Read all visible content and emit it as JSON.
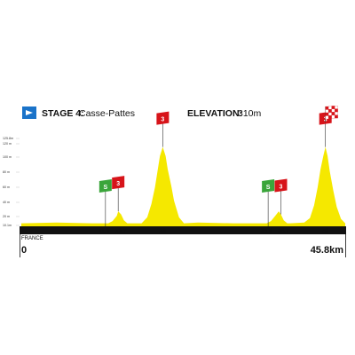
{
  "header": {
    "stage_label": "STAGE 4:",
    "stage_name": "Casse-Pattes",
    "elevation_label": "ELEVATION:",
    "elevation_value": "310m"
  },
  "start": {
    "place": "FRANCE",
    "distance": "0"
  },
  "finish": {
    "distance": "45.8km"
  },
  "colors": {
    "terrain": "#f5e800",
    "road": "#111111",
    "climb_flag": "#d7141a",
    "sprint_flag": "#3aa53a",
    "start_badge": "#1a73c9"
  },
  "icons": {
    "start": "start-arrow-icon",
    "finish": "finish-flag-icon"
  },
  "chart_data": {
    "type": "area",
    "x_unit": "km",
    "y_unit": "m",
    "xlim": [
      0,
      45.8
    ],
    "ylim": [
      10,
      125
    ],
    "yticks": [
      "125.8m",
      "120 m",
      "100 m",
      "80 m",
      "60 m",
      "40 m",
      "20 m",
      "10.1m"
    ],
    "series": [
      {
        "x": [
          0,
          5,
          10,
          12.3,
          12.9,
          13.5,
          13.7,
          14.1,
          14.5,
          15,
          17,
          17.8,
          18.4,
          18.9,
          19.3,
          19.6,
          20,
          20.4,
          20.7,
          21.2,
          21.6,
          22.3,
          23,
          25,
          30,
          34.7,
          35.3,
          35.9,
          36.4,
          36.7,
          37.1,
          37.6,
          38,
          40,
          40.8,
          41.4,
          41.9,
          42.3,
          42.7,
          43,
          43.3,
          43.6,
          44.1,
          44.6,
          45.2,
          45.8
        ],
        "y": [
          14,
          15,
          14,
          14,
          17,
          24,
          30,
          26,
          18,
          14,
          14,
          22,
          40,
          62,
          86,
          104,
          116,
          104,
          86,
          64,
          44,
          22,
          14,
          15,
          14,
          14,
          17,
          24,
          30,
          26,
          18,
          14,
          14,
          15,
          21,
          38,
          62,
          86,
          104,
          116,
          104,
          84,
          58,
          36,
          20,
          14
        ]
      }
    ],
    "km_markers": [
      "11.9",
      "13.7",
      "20",
      "34.9",
      "36.7",
      "43"
    ],
    "sprints": [
      {
        "km": 11.9,
        "label": "S"
      },
      {
        "km": 34.9,
        "label": "S"
      }
    ],
    "climbs": [
      {
        "km": 13.7,
        "category": "3"
      },
      {
        "km": 20,
        "category": "3"
      },
      {
        "km": 36.7,
        "category": "3"
      },
      {
        "km": 43,
        "category": "3"
      }
    ]
  }
}
